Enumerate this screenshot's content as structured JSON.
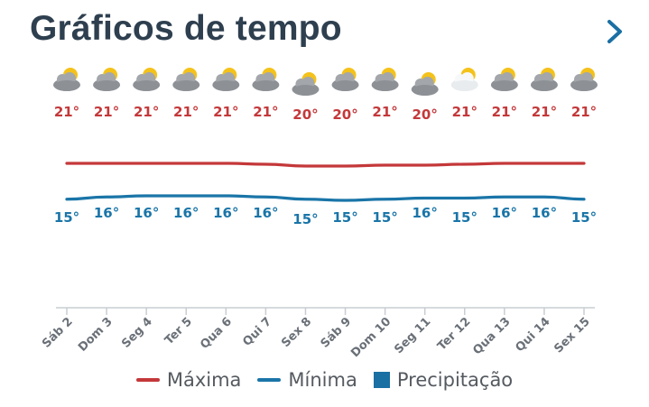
{
  "header": {
    "title": "Gráficos de tempo"
  },
  "colors": {
    "max": "#c4383a",
    "min": "#1a75a8",
    "precip": "#1a6fa3",
    "title": "#2e3f4f",
    "tick_text": "#6a7078"
  },
  "legend": {
    "max_label": "Máxima",
    "min_label": "Mínima",
    "precip_label": "Precipitação"
  },
  "chart_data": {
    "type": "line",
    "categories": [
      "Sáb 2",
      "Dom 3",
      "Seg 4",
      "Ter 5",
      "Qua 6",
      "Qui 7",
      "Sex 8",
      "Sáb 9",
      "Dom 10",
      "Seg 11",
      "Ter 12",
      "Qua 13",
      "Qui 14",
      "Sex 15"
    ],
    "icons": [
      "partly-cloudy-icon",
      "partly-cloudy-icon",
      "partly-cloudy-icon",
      "partly-cloudy-icon",
      "partly-cloudy-icon",
      "partly-cloudy-icon",
      "partly-cloudy-icon",
      "partly-cloudy-icon",
      "partly-cloudy-icon",
      "partly-cloudy-icon",
      "sun-cloud-light-icon",
      "partly-cloudy-icon",
      "partly-cloudy-icon",
      "partly-cloudy-icon"
    ],
    "series": [
      {
        "name": "Máxima",
        "values": [
          21,
          21,
          21,
          21,
          21,
          21,
          20,
          20,
          21,
          20,
          21,
          21,
          21,
          21
        ],
        "labels": [
          "21°",
          "21°",
          "21°",
          "21°",
          "21°",
          "21°",
          "20°",
          "20°",
          "21°",
          "20°",
          "21°",
          "21°",
          "21°",
          "21°"
        ]
      },
      {
        "name": "Mínima",
        "values": [
          15,
          16,
          16,
          16,
          16,
          16,
          15,
          15,
          15,
          16,
          15,
          16,
          16,
          15
        ],
        "labels": [
          "15°",
          "16°",
          "16°",
          "16°",
          "16°",
          "16°",
          "15°",
          "15°",
          "15°",
          "16°",
          "15°",
          "16°",
          "16°",
          "15°"
        ]
      }
    ],
    "precipitation": [
      0,
      0,
      0,
      0,
      0,
      0,
      0,
      0,
      0,
      0,
      0,
      0,
      0,
      0
    ],
    "legend_position": "bottom"
  }
}
